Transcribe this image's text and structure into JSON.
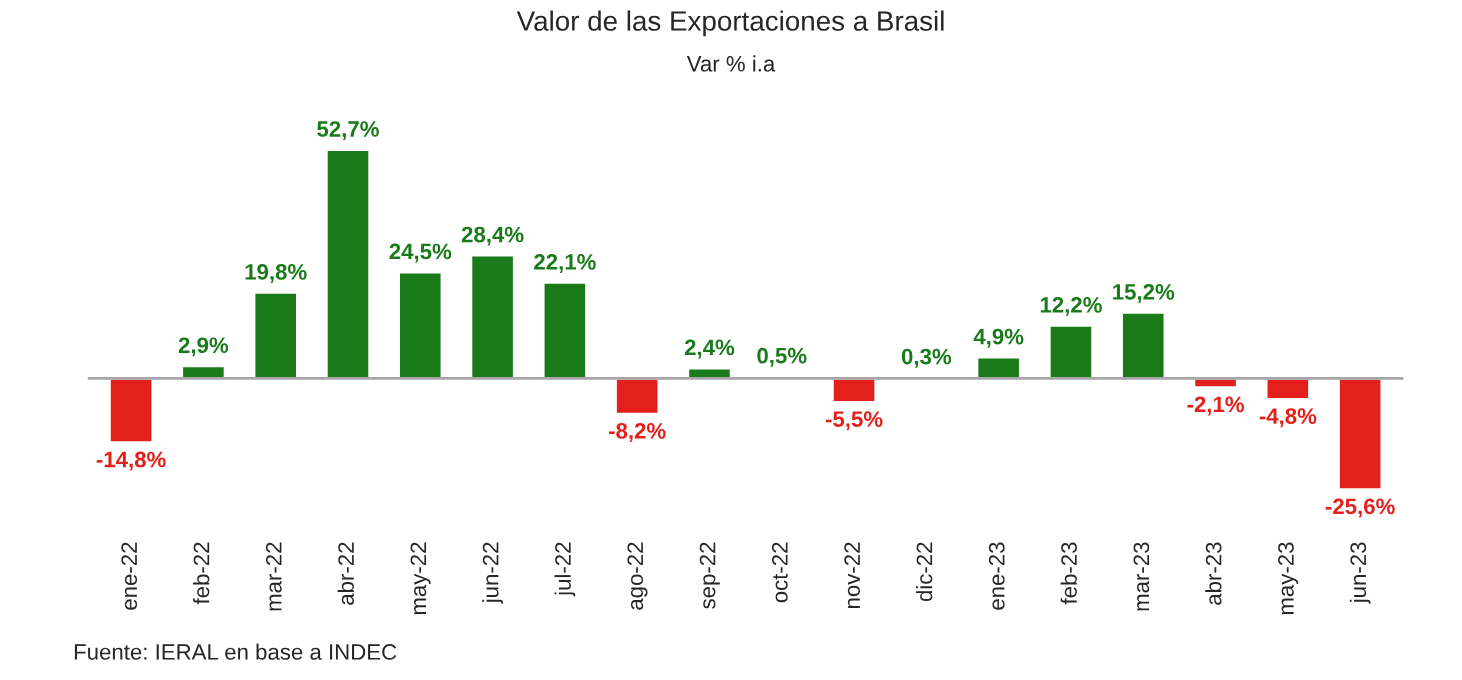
{
  "chart_data": {
    "type": "bar",
    "title": "Valor de las Exportaciones a Brasil",
    "subtitle": "Var % i.a",
    "categories": [
      "ene-22",
      "feb-22",
      "mar-22",
      "abr-22",
      "may-22",
      "jun-22",
      "jul-22",
      "ago-22",
      "sep-22",
      "oct-22",
      "nov-22",
      "dic-22",
      "ene-23",
      "feb-23",
      "mar-23",
      "abr-23",
      "may-23",
      "jun-23"
    ],
    "values": [
      -14.8,
      2.9,
      19.8,
      52.7,
      24.5,
      28.4,
      22.1,
      -8.2,
      2.4,
      0.5,
      -5.5,
      0.3,
      4.9,
      12.2,
      15.2,
      -2.1,
      -4.8,
      -25.6
    ],
    "value_labels": [
      "-14,8%",
      "2,9%",
      "19,8%",
      "52,7%",
      "24,5%",
      "28,4%",
      "22,1%",
      "-8,2%",
      "2,4%",
      "0,5%",
      "-5,5%",
      "0,3%",
      "4,9%",
      "12,2%",
      "15,2%",
      "-2,1%",
      "-4,8%",
      "-25,6%"
    ],
    "colors": [
      "#e3201b",
      "#1a7a1a",
      "#1a7a1a",
      "#1a7a1a",
      "#1a7a1a",
      "#1a7a1a",
      "#1a7a1a",
      "#e3201b",
      "#1a7a1a",
      "#1a7a1a",
      "#e3201b",
      "#1a7a1a",
      "#1a7a1a",
      "#1a7a1a",
      "#1a7a1a",
      "#e3201b",
      "#e3201b",
      "#e3201b"
    ],
    "ref_lines": [
      {
        "axis": "y",
        "value": 0,
        "color": "#a6a6a6"
      }
    ],
    "annotations": [
      "Fuente: IERAL en base a INDEC"
    ],
    "grid": false,
    "legend": false
  }
}
